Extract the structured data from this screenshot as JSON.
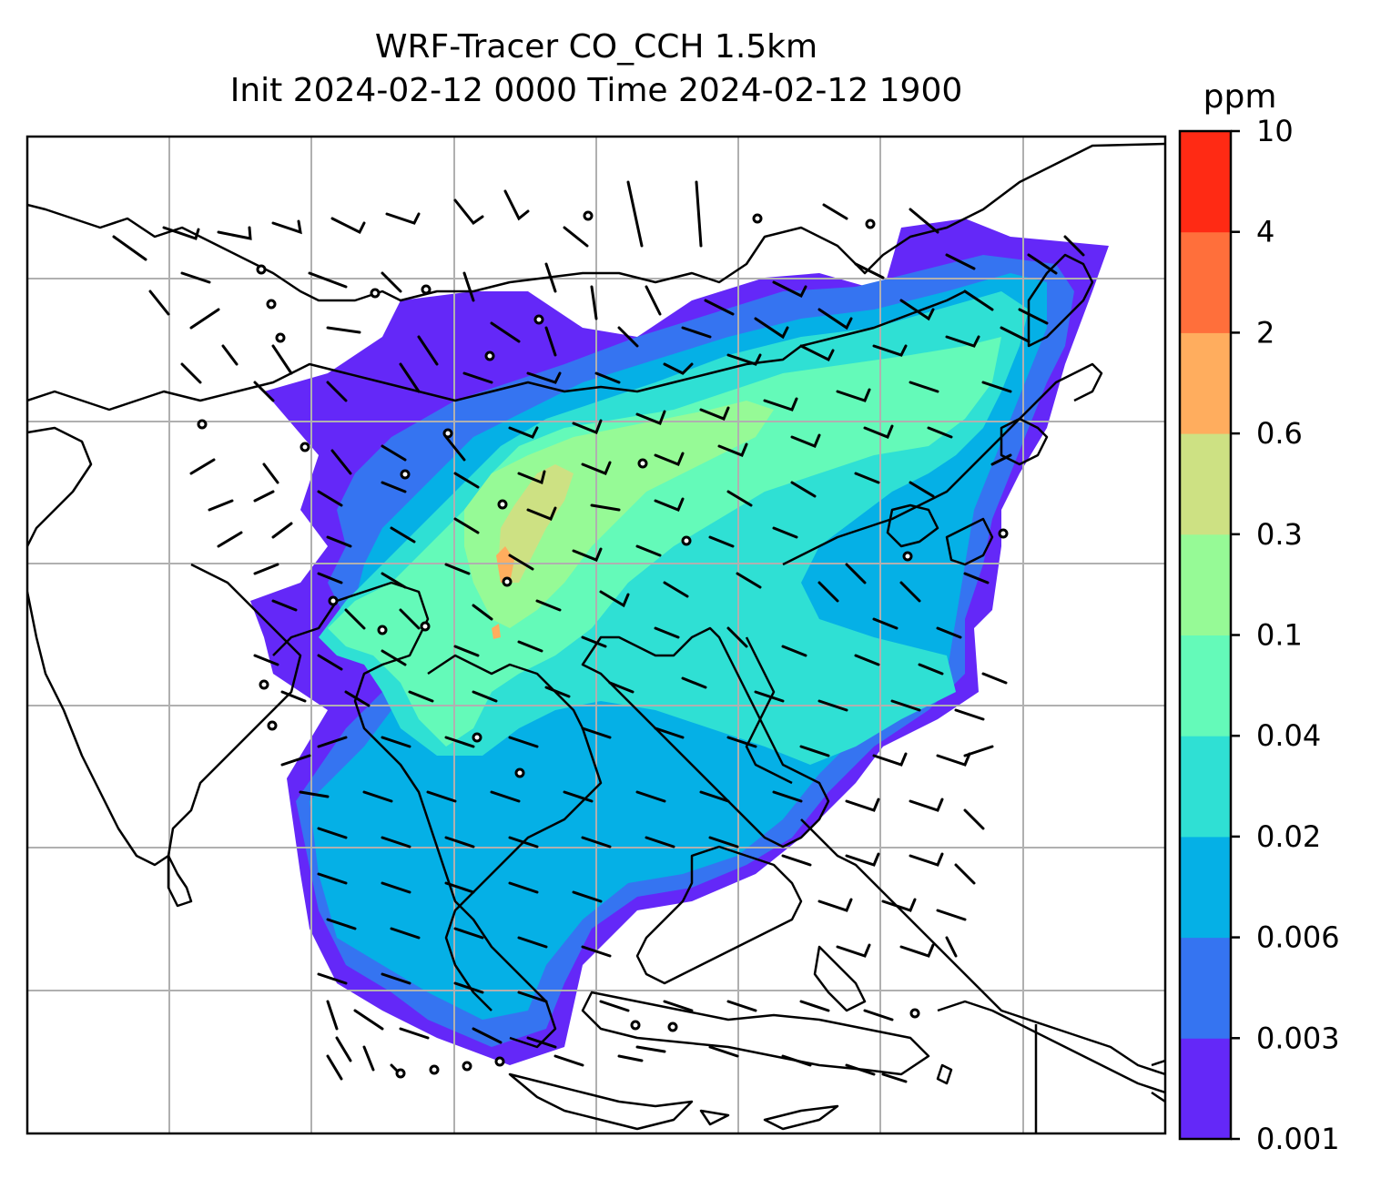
{
  "title": {
    "line1": "WRF-Tracer CO_CCH 1.5km",
    "line2": "Init 2024-02-12 0000 Time 2024-02-12 1900"
  },
  "colorbar": {
    "unit": "ppm",
    "levels": [
      "0.001",
      "0.003",
      "0.006",
      "0.02",
      "0.04",
      "0.1",
      "0.3",
      "0.6",
      "2",
      "4",
      "10"
    ],
    "colors": [
      "#6428f8",
      "#3574f1",
      "#05b0e6",
      "#2fe0d4",
      "#64fab9",
      "#96fa96",
      "#cde183",
      "#ffad5e",
      "#ff6f3b",
      "#ff2a14"
    ]
  },
  "map": {
    "gridlines": "on",
    "coastline_color": "#000000",
    "grid_color": "#b0b0b0",
    "wind_barbs": "black"
  }
}
